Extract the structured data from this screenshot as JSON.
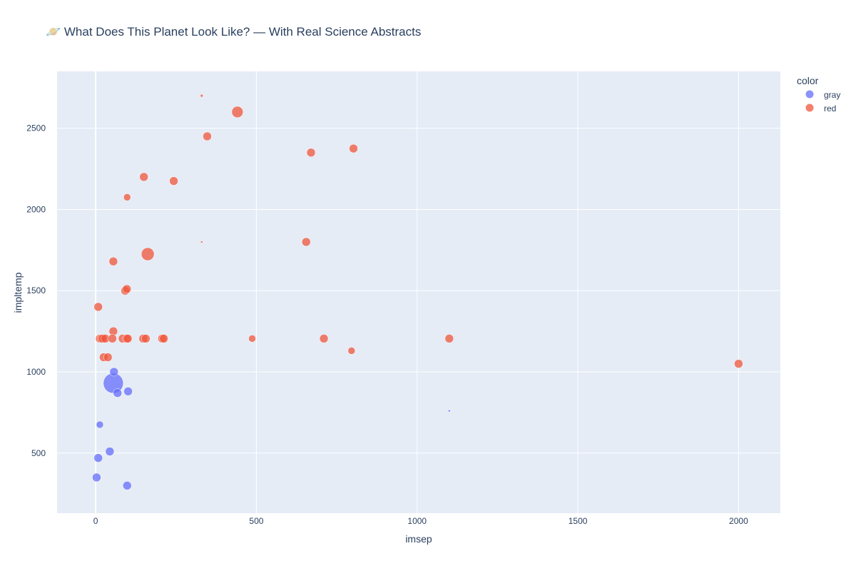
{
  "chart_data": {
    "type": "scatter",
    "title": "🪐 What Does This Planet Look Like? — With Real Science Abstracts",
    "xlabel": "imsep",
    "ylabel": "impltemp",
    "xlim": [
      -120,
      2130
    ],
    "ylim": [
      130,
      2850
    ],
    "x_ticks": [
      "0",
      "500",
      "1000",
      "1500",
      "2000"
    ],
    "y_ticks": [
      "500",
      "1000",
      "1500",
      "2000",
      "2500"
    ],
    "x_tick_values": [
      0,
      500,
      1000,
      1500,
      2000
    ],
    "y_tick_values": [
      500,
      1000,
      1500,
      2000,
      2500
    ],
    "grid": true,
    "legend": {
      "title": "color",
      "position": "top-right"
    },
    "series": [
      {
        "name": "gray",
        "color": "#636efa",
        "points": [
          {
            "x": 55,
            "y": 930,
            "size": 14
          },
          {
            "x": 57,
            "y": 1000,
            "size": 6
          },
          {
            "x": 68,
            "y": 870,
            "size": 6
          },
          {
            "x": 101,
            "y": 880,
            "size": 6
          },
          {
            "x": 13,
            "y": 675,
            "size": 5
          },
          {
            "x": 44,
            "y": 510,
            "size": 6
          },
          {
            "x": 8,
            "y": 470,
            "size": 6
          },
          {
            "x": 3,
            "y": 350,
            "size": 6
          },
          {
            "x": 98,
            "y": 300,
            "size": 6
          },
          {
            "x": 1100,
            "y": 760,
            "size": 1.5
          }
        ]
      },
      {
        "name": "red",
        "color": "#ef553b",
        "points": [
          {
            "x": 330,
            "y": 2700,
            "size": 2
          },
          {
            "x": 441,
            "y": 2600,
            "size": 8
          },
          {
            "x": 347,
            "y": 2450,
            "size": 6
          },
          {
            "x": 670,
            "y": 2350,
            "size": 6
          },
          {
            "x": 802,
            "y": 2375,
            "size": 6
          },
          {
            "x": 150,
            "y": 2200,
            "size": 6
          },
          {
            "x": 243,
            "y": 2175,
            "size": 6
          },
          {
            "x": 98,
            "y": 2075,
            "size": 5
          },
          {
            "x": 330,
            "y": 1800,
            "size": 1.5
          },
          {
            "x": 655,
            "y": 1800,
            "size": 6
          },
          {
            "x": 162,
            "y": 1725,
            "size": 9
          },
          {
            "x": 55,
            "y": 1680,
            "size": 6
          },
          {
            "x": 92,
            "y": 1500,
            "size": 6
          },
          {
            "x": 97,
            "y": 1510,
            "size": 6
          },
          {
            "x": 8,
            "y": 1400,
            "size": 6
          },
          {
            "x": 55,
            "y": 1250,
            "size": 6
          },
          {
            "x": 13,
            "y": 1205,
            "size": 6
          },
          {
            "x": 18,
            "y": 1205,
            "size": 6
          },
          {
            "x": 22,
            "y": 1205,
            "size": 6
          },
          {
            "x": 30,
            "y": 1205,
            "size": 6
          },
          {
            "x": 52,
            "y": 1205,
            "size": 6
          },
          {
            "x": 84,
            "y": 1205,
            "size": 6
          },
          {
            "x": 96,
            "y": 1205,
            "size": 6
          },
          {
            "x": 100,
            "y": 1205,
            "size": 6
          },
          {
            "x": 148,
            "y": 1205,
            "size": 6
          },
          {
            "x": 156,
            "y": 1205,
            "size": 6
          },
          {
            "x": 207,
            "y": 1205,
            "size": 6
          },
          {
            "x": 212,
            "y": 1205,
            "size": 6
          },
          {
            "x": 487,
            "y": 1205,
            "size": 5
          },
          {
            "x": 710,
            "y": 1205,
            "size": 6
          },
          {
            "x": 1100,
            "y": 1205,
            "size": 6
          },
          {
            "x": 25,
            "y": 1090,
            "size": 6
          },
          {
            "x": 38,
            "y": 1090,
            "size": 6
          },
          {
            "x": 796,
            "y": 1130,
            "size": 5
          },
          {
            "x": 2000,
            "y": 1050,
            "size": 6
          }
        ]
      }
    ]
  }
}
